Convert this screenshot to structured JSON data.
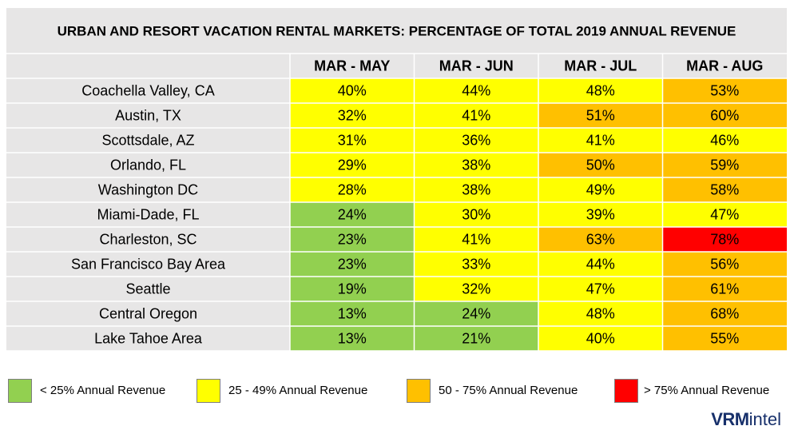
{
  "chart_data": {
    "type": "table",
    "title": "URBAN AND RESORT VACATION RENTAL MARKETS: PERCENTAGE OF TOTAL 2019 ANNUAL REVENUE",
    "columns": [
      "MAR - MAY",
      "MAR - JUN",
      "MAR - JUL",
      "MAR - AUG"
    ],
    "rows": [
      {
        "label": "Coachella Valley, CA",
        "values": [
          "40%",
          "44%",
          "48%",
          "53%"
        ]
      },
      {
        "label": "Austin, TX",
        "values": [
          "32%",
          "41%",
          "51%",
          "60%"
        ]
      },
      {
        "label": "Scottsdale, AZ",
        "values": [
          "31%",
          "36%",
          "41%",
          "46%"
        ]
      },
      {
        "label": "Orlando, FL",
        "values": [
          "29%",
          "38%",
          "50%",
          "59%"
        ]
      },
      {
        "label": "Washington DC",
        "values": [
          "28%",
          "38%",
          "49%",
          "58%"
        ]
      },
      {
        "label": "Miami-Dade, FL",
        "values": [
          "24%",
          "30%",
          "39%",
          "47%"
        ]
      },
      {
        "label": "Charleston, SC",
        "values": [
          "23%",
          "41%",
          "63%",
          "78%"
        ]
      },
      {
        "label": "San Francisco Bay Area",
        "values": [
          "23%",
          "33%",
          "44%",
          "56%"
        ]
      },
      {
        "label": "Seattle",
        "values": [
          "19%",
          "32%",
          "47%",
          "61%"
        ]
      },
      {
        "label": "Central Oregon",
        "values": [
          "13%",
          "24%",
          "48%",
          "68%"
        ]
      },
      {
        "label": "Lake Tahoe Area",
        "values": [
          "13%",
          "21%",
          "40%",
          "55%"
        ]
      }
    ],
    "color_scale": [
      {
        "label": "< 25% Annual Revenue",
        "max": 25,
        "color": "#92d050"
      },
      {
        "label": "25 - 49% Annual Revenue",
        "max": 50,
        "color": "#ffff00"
      },
      {
        "label": "50 - 75% Annual Revenue",
        "max": 76,
        "color": "#ffc000"
      },
      {
        "label": "> 75% Annual Revenue",
        "max": 101,
        "color": "#ff0000"
      }
    ],
    "legend_placement": "bottom"
  },
  "colors": {
    "grid_background": "#e7e6e6",
    "grid_line": "#ffffff",
    "text": "#000000",
    "brand": "#17306b"
  },
  "brand": {
    "part1": "VRM",
    "part2": "intel"
  }
}
